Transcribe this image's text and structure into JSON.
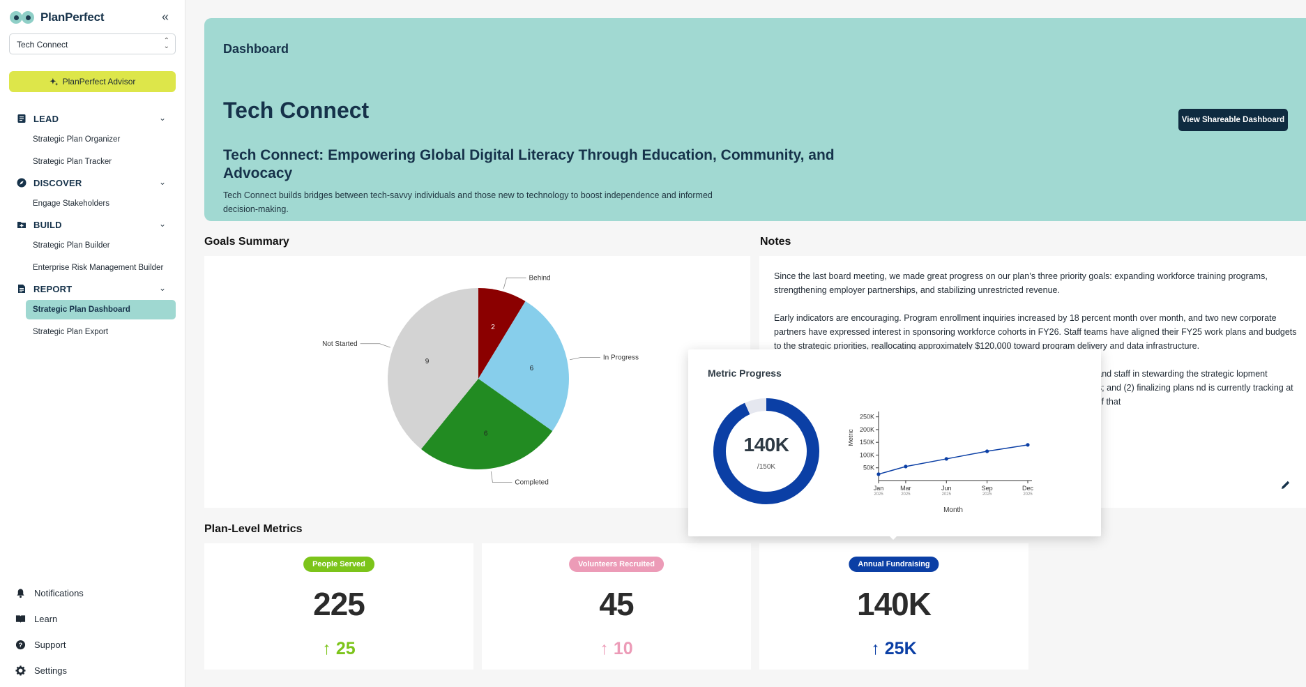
{
  "app": {
    "brand_name": "PlanPerfect",
    "org_selector_value": "Tech Connect",
    "advisor_label": "PlanPerfect Advisor"
  },
  "sidebar": {
    "sections": [
      {
        "label": "LEAD",
        "icon": "document-icon",
        "items": [
          "Strategic Plan Organizer",
          "Strategic Plan Tracker"
        ]
      },
      {
        "label": "DISCOVER",
        "icon": "compass-icon",
        "items": [
          "Engage Stakeholders"
        ]
      },
      {
        "label": "BUILD",
        "icon": "folder-plus-icon",
        "items": [
          "Strategic Plan Builder",
          "Enterprise Risk Management Builder"
        ]
      },
      {
        "label": "REPORT",
        "icon": "report-icon",
        "items": [
          "Strategic Plan Dashboard",
          "Strategic Plan Export"
        ]
      }
    ],
    "active_item": "Strategic Plan Dashboard",
    "footer": [
      {
        "label": "Notifications",
        "icon": "bell-icon"
      },
      {
        "label": "Learn",
        "icon": "book-icon"
      },
      {
        "label": "Support",
        "icon": "help-icon"
      },
      {
        "label": "Settings",
        "icon": "gear-icon"
      }
    ]
  },
  "hero": {
    "breadcrumb": "Dashboard",
    "org_title": "Tech Connect",
    "plan_title": "Tech Connect: Empowering Global Digital Literacy Through Education, Community, and Advocacy",
    "plan_description": "Tech Connect builds bridges between tech-savvy individuals and those new to technology to boost independence and informed decision-making.",
    "share_button": "View Shareable Dashboard"
  },
  "goals_summary": {
    "title": "Goals Summary",
    "chart_data": {
      "type": "pie",
      "categories": [
        "Behind",
        "In Progress",
        "Completed",
        "Not Started"
      ],
      "values": [
        2,
        6,
        6,
        9
      ],
      "colors": [
        "#8b0000",
        "#87ceeb",
        "#228b22",
        "#d3d3d3"
      ]
    }
  },
  "notes": {
    "title": "Notes",
    "paragraphs": [
      "Since the last board meeting, we made great progress on our plan’s three priority goals: expanding workforce training programs, strengthening employer partnerships, and stabilizing unrestricted revenue.",
      "Early indicators are encouraging. Program enrollment inquiries increased by 18 percent month over month, and two new corporate partners have expressed interest in sponsoring workforce cohorts in FY26. Staff teams have aligned their FY25 work plans and budgets to the strategic priorities, reallocating approximately $120,000 toward program delivery and data infrastructure.",
      "f the board and staff in stewarding the strategic lopment expectations; and (2) finalizing plans nd is currently tracking at 72 percent of that"
    ]
  },
  "plan_metrics": {
    "title": "Plan-Level Metrics",
    "cards": [
      {
        "label": "People Served",
        "value": "225",
        "delta": "25",
        "color": "#7cc41a"
      },
      {
        "label": "Volunteers Recruited",
        "value": "45",
        "delta": "10",
        "color": "#ec9bb7"
      },
      {
        "label": "Annual Fundraising",
        "value": "140K",
        "delta": "25K",
        "color": "#0b3fa5"
      }
    ]
  },
  "metric_popover": {
    "title": "Metric Progress",
    "current_label": "140K",
    "target_label": "/150K",
    "progress_fraction": 0.9333,
    "chart_data": [
      {
        "type": "pie",
        "values": [
          140000,
          10000
        ],
        "colors": [
          "#0b3fa5",
          "#e5e7ef"
        ]
      },
      {
        "type": "line",
        "x": [
          "Jan 2025",
          "Mar 2025",
          "Jun 2025",
          "Sep 2025",
          "Dec 2025"
        ],
        "x_tick_month": [
          "Jan",
          "Mar",
          "Jun",
          "Sep",
          "Dec"
        ],
        "x_tick_year": [
          "2025",
          "2025",
          "2025",
          "2025",
          "2025"
        ],
        "x_index": [
          0,
          2,
          5,
          8,
          11
        ],
        "y": [
          25000,
          55000,
          85000,
          115000,
          140000
        ],
        "y_ticks": [
          "50K",
          "100K",
          "150K",
          "200K",
          "250K"
        ],
        "y_tick_values": [
          50000,
          100000,
          150000,
          200000,
          250000
        ],
        "ylim": [
          0,
          260000
        ],
        "xlabel": "Month",
        "ylabel": "Metric",
        "color": "#0b3fa5"
      }
    ]
  }
}
